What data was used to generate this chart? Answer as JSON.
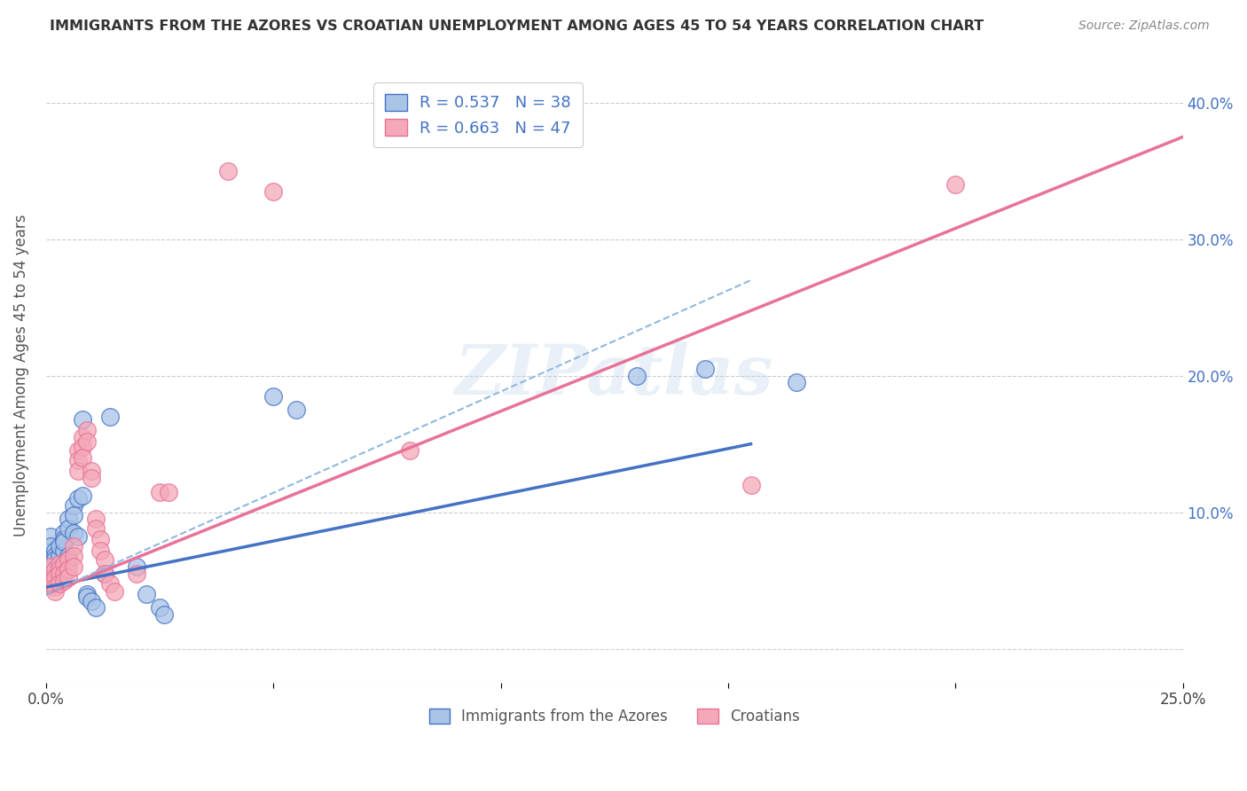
{
  "title": "IMMIGRANTS FROM THE AZORES VS CROATIAN UNEMPLOYMENT AMONG AGES 45 TO 54 YEARS CORRELATION CHART",
  "source": "Source: ZipAtlas.com",
  "ylabel": "Unemployment Among Ages 45 to 54 years",
  "xmin": 0.0,
  "xmax": 0.25,
  "ymin": -0.025,
  "ymax": 0.425,
  "xticks": [
    0.0,
    0.05,
    0.1,
    0.15,
    0.2,
    0.25
  ],
  "xtick_labels": [
    "0.0%",
    "",
    "",
    "",
    "",
    "25.0%"
  ],
  "yticks": [
    0.0,
    0.1,
    0.2,
    0.3,
    0.4
  ],
  "ytick_labels": [
    "",
    "10.0%",
    "20.0%",
    "30.0%",
    "40.0%"
  ],
  "legend1_label": "R = 0.537   N = 38",
  "legend2_label": "R = 0.663   N = 47",
  "legend1_facecolor": "#aac4e8",
  "legend2_facecolor": "#f4a8b8",
  "blue_color": "#4472c4",
  "pink_color": "#e87298",
  "dashed_color": "#90b8e0",
  "scatter_blue": [
    [
      0.001,
      0.082
    ],
    [
      0.001,
      0.075
    ],
    [
      0.002,
      0.072
    ],
    [
      0.002,
      0.068
    ],
    [
      0.002,
      0.065
    ],
    [
      0.003,
      0.062
    ],
    [
      0.003,
      0.068
    ],
    [
      0.003,
      0.075
    ],
    [
      0.004,
      0.072
    ],
    [
      0.004,
      0.085
    ],
    [
      0.004,
      0.08
    ],
    [
      0.004,
      0.078
    ],
    [
      0.005,
      0.068
    ],
    [
      0.005,
      0.065
    ],
    [
      0.005,
      0.095
    ],
    [
      0.005,
      0.088
    ],
    [
      0.006,
      0.105
    ],
    [
      0.006,
      0.098
    ],
    [
      0.006,
      0.085
    ],
    [
      0.007,
      0.11
    ],
    [
      0.007,
      0.082
    ],
    [
      0.008,
      0.112
    ],
    [
      0.008,
      0.168
    ],
    [
      0.009,
      0.04
    ],
    [
      0.009,
      0.038
    ],
    [
      0.01,
      0.035
    ],
    [
      0.011,
      0.03
    ],
    [
      0.013,
      0.055
    ],
    [
      0.014,
      0.17
    ],
    [
      0.02,
      0.06
    ],
    [
      0.022,
      0.04
    ],
    [
      0.025,
      0.03
    ],
    [
      0.026,
      0.025
    ],
    [
      0.05,
      0.185
    ],
    [
      0.055,
      0.175
    ],
    [
      0.13,
      0.2
    ],
    [
      0.145,
      0.205
    ],
    [
      0.165,
      0.195
    ]
  ],
  "scatter_pink": [
    [
      0.001,
      0.06
    ],
    [
      0.001,
      0.055
    ],
    [
      0.001,
      0.05
    ],
    [
      0.001,
      0.048
    ],
    [
      0.002,
      0.058
    ],
    [
      0.002,
      0.052
    ],
    [
      0.002,
      0.045
    ],
    [
      0.002,
      0.042
    ],
    [
      0.003,
      0.062
    ],
    [
      0.003,
      0.058
    ],
    [
      0.003,
      0.055
    ],
    [
      0.003,
      0.048
    ],
    [
      0.004,
      0.062
    ],
    [
      0.004,
      0.055
    ],
    [
      0.004,
      0.05
    ],
    [
      0.005,
      0.065
    ],
    [
      0.005,
      0.058
    ],
    [
      0.005,
      0.052
    ],
    [
      0.006,
      0.075
    ],
    [
      0.006,
      0.068
    ],
    [
      0.006,
      0.06
    ],
    [
      0.007,
      0.145
    ],
    [
      0.007,
      0.138
    ],
    [
      0.007,
      0.13
    ],
    [
      0.008,
      0.155
    ],
    [
      0.008,
      0.148
    ],
    [
      0.008,
      0.14
    ],
    [
      0.009,
      0.16
    ],
    [
      0.009,
      0.152
    ],
    [
      0.01,
      0.13
    ],
    [
      0.01,
      0.125
    ],
    [
      0.011,
      0.095
    ],
    [
      0.011,
      0.088
    ],
    [
      0.012,
      0.08
    ],
    [
      0.012,
      0.072
    ],
    [
      0.013,
      0.065
    ],
    [
      0.013,
      0.055
    ],
    [
      0.014,
      0.048
    ],
    [
      0.015,
      0.042
    ],
    [
      0.02,
      0.055
    ],
    [
      0.025,
      0.115
    ],
    [
      0.027,
      0.115
    ],
    [
      0.04,
      0.35
    ],
    [
      0.05,
      0.335
    ],
    [
      0.08,
      0.145
    ],
    [
      0.155,
      0.12
    ],
    [
      0.2,
      0.34
    ]
  ],
  "blue_line": {
    "x": [
      0.0,
      0.155
    ],
    "y": [
      0.045,
      0.15
    ]
  },
  "pink_line": {
    "x": [
      0.0,
      0.25
    ],
    "y": [
      0.04,
      0.375
    ]
  },
  "dashed_line": {
    "x": [
      0.0,
      0.155
    ],
    "y": [
      0.04,
      0.27
    ]
  },
  "watermark": "ZIPatlas",
  "background_color": "#ffffff",
  "grid_color": "#cccccc",
  "title_color": "#333333",
  "source_color": "#888888",
  "ylabel_color": "#555555",
  "ytick_color": "#4472c4",
  "xtick_color": "#444444"
}
